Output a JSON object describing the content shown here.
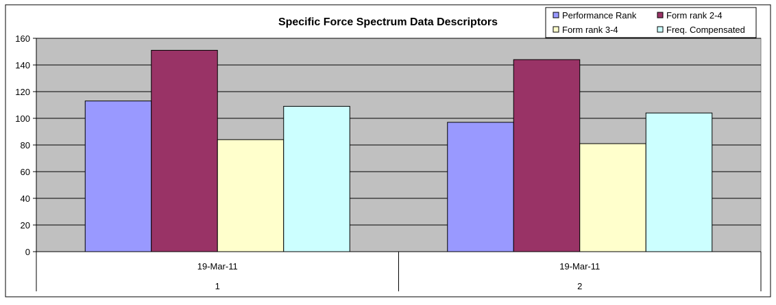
{
  "chart_data": {
    "type": "bar",
    "title": "Specific Force Spectrum Data Descriptors",
    "xlabel": "",
    "ylabel": "",
    "ylim": [
      0,
      160
    ],
    "yticks": [
      0,
      20,
      40,
      60,
      80,
      100,
      120,
      140,
      160
    ],
    "grid": true,
    "legend_position": "top-right",
    "categories": [
      {
        "date": "19-Mar-11",
        "index": "1"
      },
      {
        "date": "19-Mar-11",
        "index": "2"
      }
    ],
    "series": [
      {
        "name": "Performance Rank",
        "color": "#9999ff",
        "values": [
          113,
          97
        ]
      },
      {
        "name": "Form rank 2-4",
        "color": "#993366",
        "values": [
          151,
          144
        ]
      },
      {
        "name": "Form rank 3-4",
        "color": "#ffffcc",
        "values": [
          84,
          81
        ]
      },
      {
        "name": "Freq. Compensated",
        "color": "#ccffff",
        "values": [
          109,
          104
        ]
      }
    ],
    "plot_background": "#c0c0c0"
  }
}
